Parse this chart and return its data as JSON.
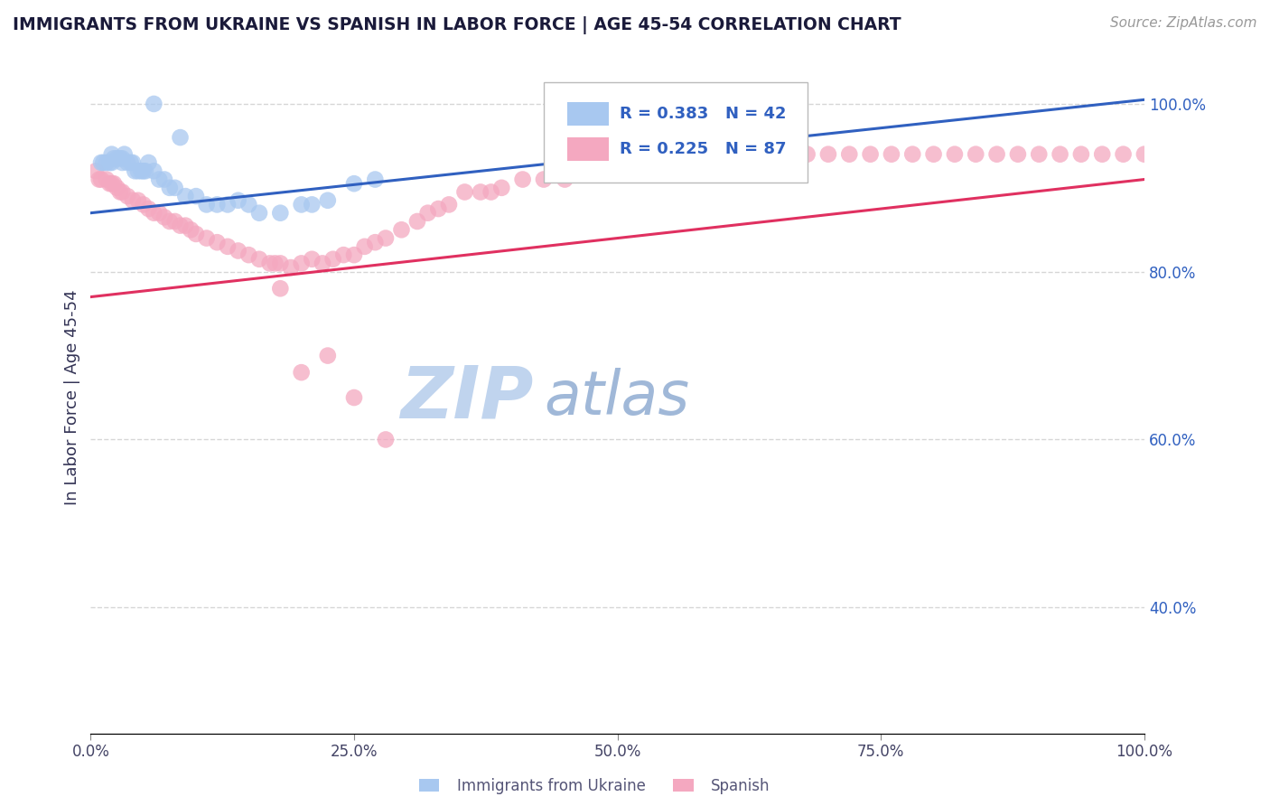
{
  "title": "IMMIGRANTS FROM UKRAINE VS SPANISH IN LABOR FORCE | AGE 45-54 CORRELATION CHART",
  "source": "Source: ZipAtlas.com",
  "ylabel": "In Labor Force | Age 45-54",
  "xlim": [
    0.0,
    1.0
  ],
  "ylim": [
    0.25,
    1.05
  ],
  "x_ticks": [
    0.0,
    0.25,
    0.5,
    0.75,
    1.0
  ],
  "x_tick_labels": [
    "0.0%",
    "25.0%",
    "50.0%",
    "75.0%",
    "100.0%"
  ],
  "y_ticks_right": [
    0.4,
    0.6,
    0.8,
    1.0
  ],
  "y_tick_labels_right": [
    "40.0%",
    "60.0%",
    "80.0%",
    "100.0%"
  ],
  "ukraine_color": "#a8c8f0",
  "spanish_color": "#f4a8c0",
  "ukraine_line_color": "#3060c0",
  "spanish_line_color": "#e03060",
  "legend_ukraine_label": "Immigrants from Ukraine",
  "legend_spanish_label": "Spanish",
  "ukraine_R": 0.383,
  "ukraine_N": 42,
  "spanish_R": 0.225,
  "spanish_N": 87,
  "ukraine_line_y0": 0.87,
  "ukraine_line_y1": 1.005,
  "spanish_line_y0": 0.77,
  "spanish_line_y1": 0.91,
  "ukraine_x": [
    0.01,
    0.012,
    0.015,
    0.018,
    0.02,
    0.02,
    0.022,
    0.025,
    0.028,
    0.03,
    0.03,
    0.032,
    0.035,
    0.038,
    0.04,
    0.042,
    0.045,
    0.048,
    0.05,
    0.052,
    0.055,
    0.06,
    0.065,
    0.07,
    0.075,
    0.08,
    0.09,
    0.1,
    0.11,
    0.12,
    0.13,
    0.14,
    0.15,
    0.16,
    0.18,
    0.2,
    0.21,
    0.225,
    0.25,
    0.27,
    0.06,
    0.085
  ],
  "ukraine_y": [
    0.93,
    0.93,
    0.93,
    0.93,
    0.93,
    0.94,
    0.935,
    0.935,
    0.935,
    0.935,
    0.93,
    0.94,
    0.93,
    0.93,
    0.93,
    0.92,
    0.92,
    0.92,
    0.92,
    0.92,
    0.93,
    0.92,
    0.91,
    0.91,
    0.9,
    0.9,
    0.89,
    0.89,
    0.88,
    0.88,
    0.88,
    0.885,
    0.88,
    0.87,
    0.87,
    0.88,
    0.88,
    0.885,
    0.905,
    0.91,
    1.0,
    0.96
  ],
  "spanish_x": [
    0.005,
    0.008,
    0.01,
    0.015,
    0.018,
    0.02,
    0.022,
    0.025,
    0.028,
    0.03,
    0.035,
    0.04,
    0.045,
    0.05,
    0.055,
    0.06,
    0.065,
    0.07,
    0.075,
    0.08,
    0.085,
    0.09,
    0.095,
    0.1,
    0.11,
    0.12,
    0.13,
    0.14,
    0.15,
    0.16,
    0.17,
    0.175,
    0.18,
    0.19,
    0.2,
    0.21,
    0.22,
    0.23,
    0.24,
    0.25,
    0.26,
    0.27,
    0.28,
    0.295,
    0.31,
    0.32,
    0.33,
    0.34,
    0.355,
    0.37,
    0.38,
    0.39,
    0.41,
    0.43,
    0.45,
    0.48,
    0.5,
    0.52,
    0.54,
    0.56,
    0.58,
    0.6,
    0.62,
    0.64,
    0.66,
    0.68,
    0.7,
    0.72,
    0.74,
    0.76,
    0.78,
    0.8,
    0.82,
    0.84,
    0.86,
    0.88,
    0.9,
    0.92,
    0.94,
    0.96,
    0.98,
    1.0,
    0.2,
    0.225,
    0.25,
    0.28,
    0.18
  ],
  "spanish_y": [
    0.92,
    0.91,
    0.91,
    0.91,
    0.905,
    0.905,
    0.905,
    0.9,
    0.895,
    0.895,
    0.89,
    0.885,
    0.885,
    0.88,
    0.875,
    0.87,
    0.87,
    0.865,
    0.86,
    0.86,
    0.855,
    0.855,
    0.85,
    0.845,
    0.84,
    0.835,
    0.83,
    0.825,
    0.82,
    0.815,
    0.81,
    0.81,
    0.81,
    0.805,
    0.81,
    0.815,
    0.81,
    0.815,
    0.82,
    0.82,
    0.83,
    0.835,
    0.84,
    0.85,
    0.86,
    0.87,
    0.875,
    0.88,
    0.895,
    0.895,
    0.895,
    0.9,
    0.91,
    0.91,
    0.91,
    0.92,
    0.92,
    0.925,
    0.93,
    0.935,
    0.93,
    0.935,
    0.94,
    0.94,
    0.94,
    0.94,
    0.94,
    0.94,
    0.94,
    0.94,
    0.94,
    0.94,
    0.94,
    0.94,
    0.94,
    0.94,
    0.94,
    0.94,
    0.94,
    0.94,
    0.94,
    0.94,
    0.68,
    0.7,
    0.65,
    0.6,
    0.78
  ],
  "background_color": "#ffffff",
  "grid_color": "#cccccc",
  "title_color": "#1a1a3a",
  "watermark_text_ZIP": "ZIP",
  "watermark_text_atlas": "atlas",
  "watermark_color_ZIP": "#c0d4ee",
  "watermark_color_atlas": "#a0b8d8",
  "legend_color": "#3060c0"
}
